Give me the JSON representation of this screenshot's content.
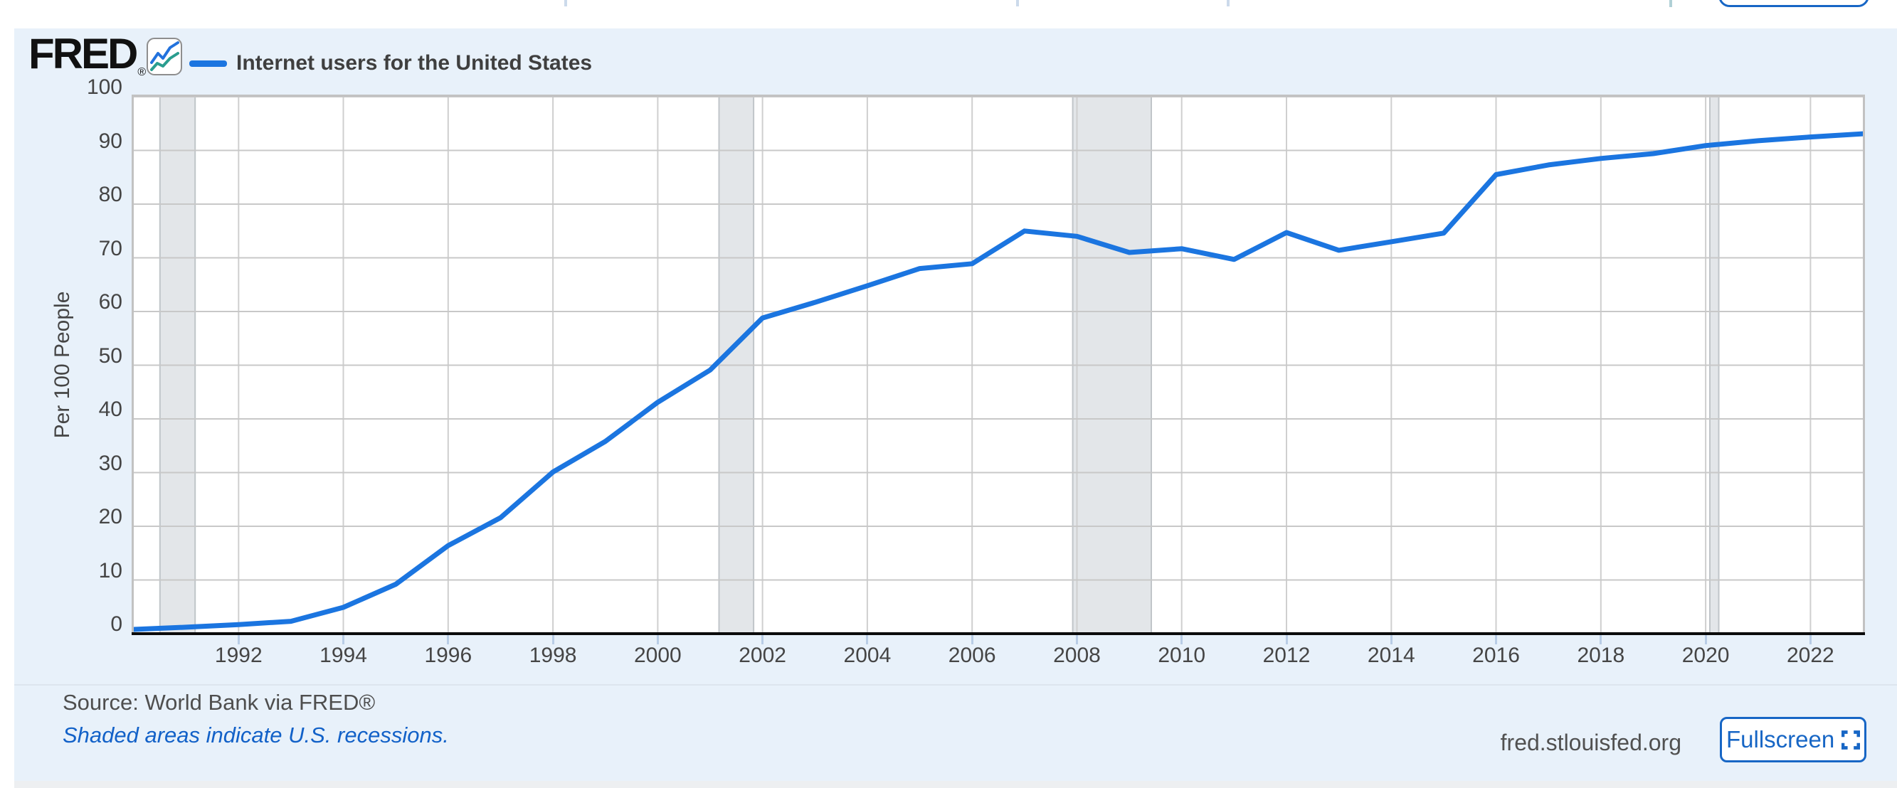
{
  "header": {
    "logo_text": "FRED",
    "logo_trademark": "®",
    "legend": {
      "swatch_color": "#1b75e0",
      "label": "Internet users for the United States"
    }
  },
  "chart_data": {
    "type": "line",
    "title": "Internet users for the United States",
    "ylabel": "Per 100 People",
    "xlabel": "",
    "ylim": [
      0,
      100
    ],
    "x_range": [
      1990,
      2023
    ],
    "y_ticks": [
      0,
      10,
      20,
      30,
      40,
      50,
      60,
      70,
      80,
      90,
      100
    ],
    "x_ticks": [
      1992,
      1994,
      1996,
      1998,
      2000,
      2002,
      2004,
      2006,
      2008,
      2010,
      2012,
      2014,
      2016,
      2018,
      2020,
      2022
    ],
    "grid": true,
    "legend_position": "top-left",
    "line_color": "#1b75e0",
    "recession_band_color": "#e3e6e9",
    "recession_band_edge": "#c0c5c9",
    "x": [
      1990,
      1991,
      1992,
      1993,
      1994,
      1995,
      1996,
      1997,
      1998,
      1999,
      2000,
      2001,
      2002,
      2003,
      2004,
      2005,
      2006,
      2007,
      2008,
      2009,
      2010,
      2011,
      2012,
      2013,
      2014,
      2015,
      2016,
      2017,
      2018,
      2019,
      2020,
      2021,
      2022,
      2023
    ],
    "series": [
      {
        "name": "Internet users for the United States",
        "color": "#1b75e0",
        "values": [
          0.8,
          1.2,
          1.7,
          2.3,
          4.9,
          9.2,
          16.4,
          21.6,
          30.1,
          35.8,
          43.1,
          49.1,
          58.8,
          61.7,
          64.8,
          68.0,
          68.9,
          75.0,
          74.0,
          71.0,
          71.7,
          69.7,
          74.7,
          71.4,
          73.0,
          74.6,
          85.5,
          87.3,
          88.5,
          89.4,
          90.9,
          91.8,
          92.5,
          93.1
        ]
      }
    ],
    "recessions": [
      {
        "start": 1990.5,
        "end": 1991.17
      },
      {
        "start": 2001.17,
        "end": 2001.83
      },
      {
        "start": 2007.92,
        "end": 2009.42
      },
      {
        "start": 2020.08,
        "end": 2020.25
      }
    ]
  },
  "footer": {
    "source": "Source: World Bank via FRED®",
    "recession_note": "Shaded areas indicate U.S. recessions.",
    "site": "fred.stlouisfed.org",
    "fullscreen": "Fullscreen"
  },
  "colors": {
    "panel_background": "#e8f1fa",
    "plot_background": "#ffffff",
    "grid_horizontal": "#c8c8c8",
    "grid_vertical": "#cfcfcf",
    "plot_border": "#c2c2c2",
    "axis_line": "#0b0b0b",
    "tick_mark": "#b9cde6",
    "axis_text": "#454545",
    "accent_blue": "#1766c5"
  }
}
